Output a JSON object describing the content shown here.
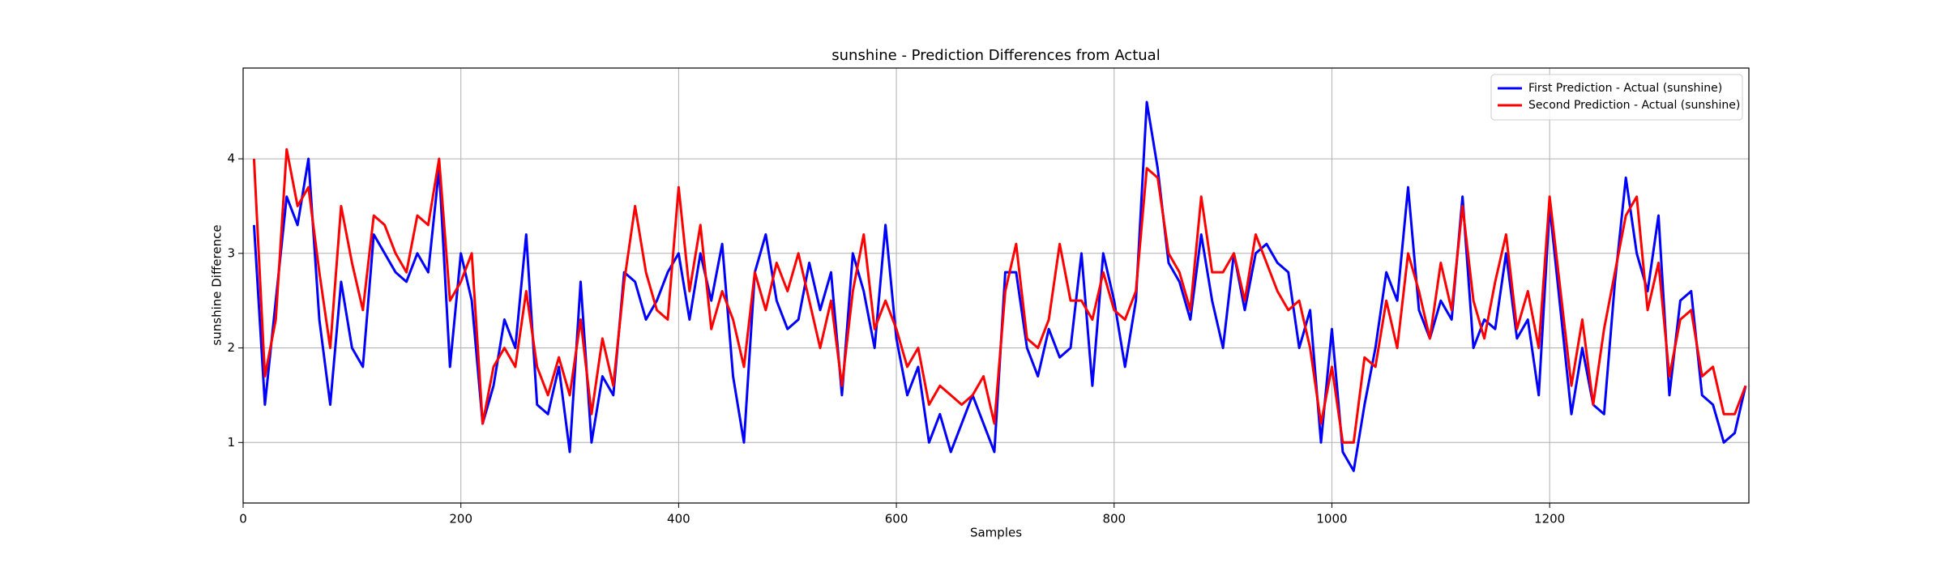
{
  "chart_data": {
    "type": "line",
    "title": "sunshine - Prediction Differences from Actual",
    "x_label": "Samples",
    "y_label": "sunshine Difference",
    "x": [
      10,
      20,
      30,
      40,
      50,
      60,
      70,
      80,
      90,
      100,
      110,
      120,
      130,
      140,
      150,
      160,
      170,
      180,
      190,
      200,
      210,
      220,
      230,
      240,
      250,
      260,
      270,
      280,
      290,
      300,
      310,
      320,
      330,
      340,
      350,
      360,
      370,
      380,
      390,
      400,
      410,
      420,
      430,
      440,
      450,
      460,
      470,
      480,
      490,
      500,
      510,
      520,
      530,
      540,
      550,
      560,
      570,
      580,
      590,
      600,
      610,
      620,
      630,
      640,
      650,
      660,
      670,
      680,
      690,
      700,
      710,
      720,
      730,
      740,
      750,
      760,
      770,
      780,
      790,
      800,
      810,
      820,
      830,
      840,
      850,
      860,
      870,
      880,
      890,
      900,
      910,
      920,
      930,
      940,
      950,
      960,
      970,
      980,
      990,
      1000,
      1010,
      1020,
      1030,
      1040,
      1050,
      1060,
      1070,
      1080,
      1090,
      1100,
      1110,
      1120,
      1130,
      1140,
      1150,
      1160,
      1170,
      1180,
      1190,
      1200,
      1210,
      1220,
      1230,
      1240,
      1250,
      1260,
      1270,
      1280,
      1290,
      1300,
      1310,
      1320,
      1330,
      1340,
      1350,
      1360,
      1370,
      1380
    ],
    "series": [
      {
        "name": "First Prediction - Actual (sunshine)",
        "color": "#0000ff",
        "values": [
          3.3,
          1.4,
          2.5,
          3.6,
          3.3,
          4.0,
          2.3,
          1.4,
          2.7,
          2.0,
          1.8,
          3.2,
          3.0,
          2.8,
          2.7,
          3.0,
          2.8,
          3.9,
          1.8,
          3.0,
          2.5,
          1.2,
          1.6,
          2.3,
          2.0,
          3.2,
          1.4,
          1.3,
          1.8,
          0.9,
          2.7,
          1.0,
          1.7,
          1.5,
          2.8,
          2.7,
          2.3,
          2.5,
          2.8,
          3.0,
          2.3,
          3.0,
          2.5,
          3.1,
          1.7,
          1.0,
          2.8,
          3.2,
          2.5,
          2.2,
          2.3,
          2.9,
          2.4,
          2.8,
          1.5,
          3.0,
          2.6,
          2.0,
          3.3,
          2.1,
          1.5,
          1.8,
          1.0,
          1.3,
          0.9,
          1.2,
          1.5,
          1.2,
          0.9,
          2.8,
          2.8,
          2.0,
          1.7,
          2.2,
          1.9,
          2.0,
          3.0,
          1.6,
          3.0,
          2.5,
          1.8,
          2.5,
          4.6,
          3.9,
          2.9,
          2.7,
          2.3,
          3.2,
          2.5,
          2.0,
          3.0,
          2.4,
          3.0,
          3.1,
          2.9,
          2.8,
          2.0,
          2.4,
          1.0,
          2.2,
          0.9,
          0.7,
          1.4,
          2.0,
          2.8,
          2.5,
          3.7,
          2.4,
          2.1,
          2.5,
          2.3,
          3.6,
          2.0,
          2.3,
          2.2,
          3.0,
          2.1,
          2.3,
          1.5,
          3.5,
          2.4,
          1.3,
          2.0,
          1.4,
          1.3,
          2.7,
          3.8,
          3.0,
          2.6,
          3.4,
          1.5,
          2.5,
          2.6,
          1.5,
          1.4,
          1.0,
          1.1,
          1.6
        ]
      },
      {
        "name": "Second Prediction - Actual (sunshine)",
        "color": "#ff0000",
        "values": [
          4.0,
          1.7,
          2.3,
          4.1,
          3.5,
          3.7,
          2.8,
          2.0,
          3.5,
          2.9,
          2.4,
          3.4,
          3.3,
          3.0,
          2.8,
          3.4,
          3.3,
          4.0,
          2.5,
          2.7,
          3.0,
          1.2,
          1.8,
          2.0,
          1.8,
          2.6,
          1.8,
          1.5,
          1.9,
          1.5,
          2.3,
          1.3,
          2.1,
          1.6,
          2.7,
          3.5,
          2.8,
          2.4,
          2.3,
          3.7,
          2.6,
          3.3,
          2.2,
          2.6,
          2.3,
          1.8,
          2.8,
          2.4,
          2.9,
          2.6,
          3.0,
          2.5,
          2.0,
          2.5,
          1.6,
          2.6,
          3.2,
          2.2,
          2.5,
          2.2,
          1.8,
          2.0,
          1.4,
          1.6,
          1.5,
          1.4,
          1.5,
          1.7,
          1.2,
          2.6,
          3.1,
          2.1,
          2.0,
          2.3,
          3.1,
          2.5,
          2.5,
          2.3,
          2.8,
          2.4,
          2.3,
          2.6,
          3.9,
          3.8,
          3.0,
          2.8,
          2.4,
          3.6,
          2.8,
          2.8,
          3.0,
          2.5,
          3.2,
          2.9,
          2.6,
          2.4,
          2.5,
          2.0,
          1.2,
          1.8,
          1.0,
          1.0,
          1.9,
          1.8,
          2.5,
          2.0,
          3.0,
          2.6,
          2.1,
          2.9,
          2.4,
          3.5,
          2.5,
          2.1,
          2.7,
          3.2,
          2.2,
          2.6,
          2.0,
          3.6,
          2.6,
          1.6,
          2.3,
          1.4,
          2.2,
          2.8,
          3.4,
          3.6,
          2.4,
          2.9,
          1.7,
          2.3,
          2.4,
          1.7,
          1.8,
          1.3,
          1.3,
          1.6
        ]
      }
    ],
    "xlim": [
      0,
      1383
    ],
    "ylim": [
      0.36,
      4.96
    ],
    "xticks": [
      0,
      200,
      400,
      600,
      800,
      1000,
      1200
    ],
    "yticks": [
      1,
      2,
      3,
      4
    ],
    "grid": true,
    "legend_position": "upper right"
  }
}
